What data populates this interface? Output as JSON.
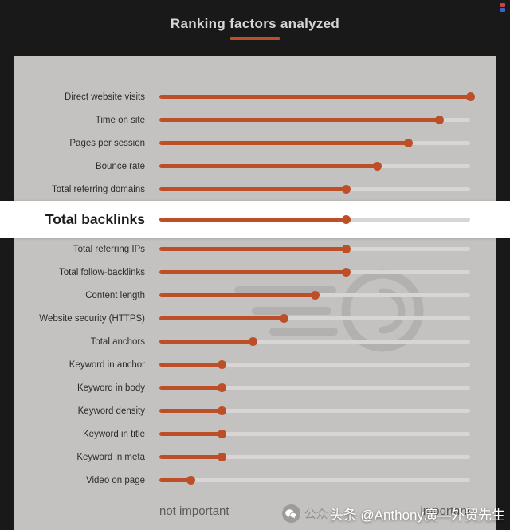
{
  "header": {
    "title": "Ranking factors analyzed"
  },
  "chart_data": {
    "type": "lollipop",
    "title": "Ranking factors analyzed",
    "categories": [
      "Direct website visits",
      "Time on site",
      "Pages per session",
      "Bounce rate",
      "Total referring domains",
      "Total backlinks",
      "Total referring IPs",
      "Total follow-backlinks",
      "Content length",
      "Website security (HTTPS)",
      "Total anchors",
      "Keyword in anchor",
      "Keyword in body",
      "Keyword density",
      "Keyword in title",
      "Keyword in meta",
      "Video on page"
    ],
    "values": [
      1.0,
      0.9,
      0.8,
      0.7,
      0.6,
      0.6,
      0.6,
      0.6,
      0.5,
      0.4,
      0.3,
      0.2,
      0.2,
      0.2,
      0.2,
      0.2,
      0.1
    ],
    "highlighted": "Total backlinks",
    "xlim": [
      0,
      1
    ],
    "axis_labels": {
      "left": "not important",
      "right": "important"
    },
    "legend": "none",
    "grid": false,
    "colors": {
      "accent": "#bc4f28",
      "track": "#d7d6d4",
      "panel": "#c3c2c0",
      "background": "#191919",
      "highlight_band": "#ffffff"
    }
  },
  "watermark": {
    "badge_label": "公众",
    "overlay_text": "头条 @Anthony廣—外贸先生"
  }
}
